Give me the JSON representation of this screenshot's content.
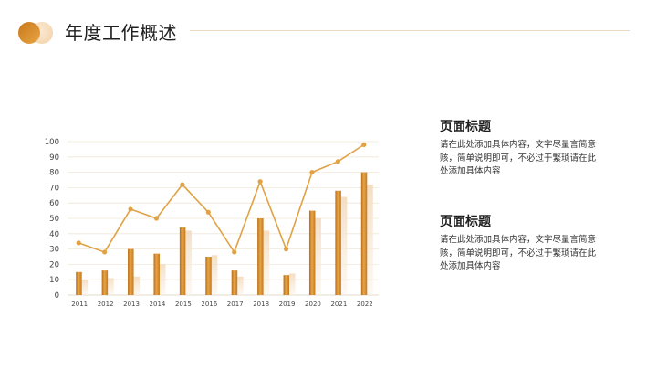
{
  "page": {
    "title": "年度工作概述"
  },
  "blocks": [
    {
      "title": "页面标题",
      "body": "请在此处添加具体内容，文字尽量言简意赅，简单说明即可，不必过于繁琐请在此处添加具体内容"
    },
    {
      "title": "页面标题",
      "body": "请在此处添加具体内容，文字尽量言简意赅，简单说明即可，不必过于繁琐请在此处添加具体内容"
    }
  ],
  "colors": {
    "accent": "#d18a2a",
    "line": "#e0a245",
    "bar_light": "#f6e4cf",
    "grid": "#efe7d8"
  },
  "chart_data": {
    "type": "bar",
    "categories": [
      "2011",
      "2012",
      "2013",
      "2014",
      "2015",
      "2016",
      "2017",
      "2018",
      "2019",
      "2020",
      "2021",
      "2022"
    ],
    "ylim": [
      0,
      100
    ],
    "yticks": [
      0,
      10,
      20,
      30,
      40,
      50,
      60,
      70,
      80,
      90,
      100
    ],
    "grid": true,
    "series": [
      {
        "type": "bar",
        "values": [
          15,
          16,
          30,
          27,
          44,
          25,
          16,
          50,
          13,
          55,
          68,
          80
        ]
      },
      {
        "type": "bar",
        "values": [
          10,
          11,
          12,
          20,
          42,
          26,
          12,
          42,
          14,
          50,
          64,
          72
        ]
      },
      {
        "type": "line",
        "values": [
          34,
          28,
          56,
          50,
          72,
          54,
          28,
          74,
          30,
          80,
          87,
          98
        ]
      }
    ]
  }
}
